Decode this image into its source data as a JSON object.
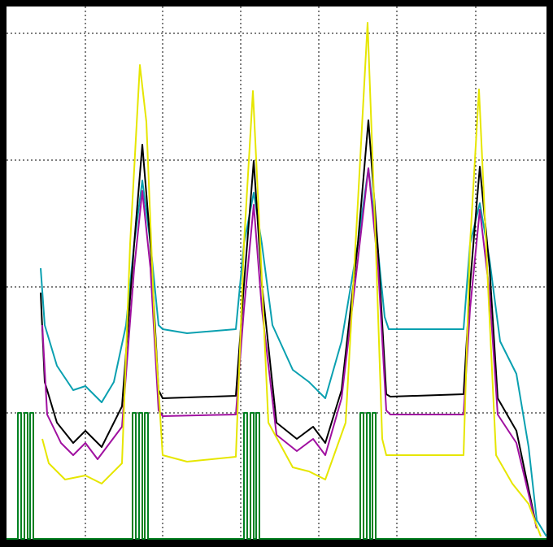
{
  "chart_data": {
    "type": "line",
    "grid": true,
    "xlim": [
      0,
      664
    ],
    "ylim": [
      0,
      655
    ],
    "xticks": [
      97,
      192,
      288,
      384,
      480,
      577
    ],
    "yticks": [
      155,
      310,
      466,
      622
    ],
    "series": [
      {
        "color": "#0aa0b0",
        "x": [
          42,
          47,
          62,
          82,
          97,
          117,
          132,
          147,
          157,
          167,
          177,
          187,
          192,
          222,
          282,
          292,
          304,
          314,
          327,
          352,
          372,
          392,
          412,
          432,
          445,
          455,
          465,
          470,
          522,
          562,
          570,
          582,
          594,
          607,
          627,
          642,
          652,
          664
        ],
        "values": [
          333,
          263,
          213,
          183,
          188,
          168,
          193,
          263,
          363,
          441,
          363,
          263,
          258,
          253,
          258,
          363,
          426,
          363,
          263,
          208,
          193,
          173,
          243,
          363,
          456,
          373,
          273,
          258,
          258,
          258,
          363,
          413,
          343,
          243,
          203,
          113,
          23,
          3
        ]
      },
      {
        "color": "#000000",
        "x": [
          42,
          47,
          62,
          82,
          97,
          117,
          142,
          157,
          167,
          177,
          187,
          192,
          282,
          292,
          304,
          314,
          332,
          357,
          377,
          392,
          412,
          432,
          445,
          457,
          467,
          472,
          562,
          570,
          582,
          594,
          604,
          627,
          652
        ],
        "values": [
          303,
          193,
          143,
          118,
          133,
          113,
          163,
          363,
          485,
          363,
          183,
          173,
          176,
          313,
          465,
          313,
          143,
          123,
          138,
          118,
          183,
          363,
          515,
          353,
          178,
          175,
          178,
          313,
          458,
          333,
          173,
          133,
          13
        ]
      },
      {
        "color": "#a010a0",
        "x": [
          44,
          50,
          67,
          82,
          97,
          112,
          142,
          157,
          167,
          177,
          187,
          192,
          282,
          292,
          304,
          314,
          332,
          357,
          377,
          392,
          412,
          432,
          445,
          457,
          467,
          472,
          562,
          570,
          582,
          594,
          604,
          627,
          652
        ],
        "values": [
          263,
          153,
          118,
          103,
          118,
          98,
          138,
          333,
          428,
          333,
          158,
          151,
          153,
          283,
          411,
          283,
          128,
          108,
          123,
          103,
          173,
          343,
          456,
          333,
          158,
          153,
          153,
          283,
          405,
          303,
          153,
          118,
          13
        ]
      },
      {
        "color": "#e6e600",
        "x": [
          44,
          52,
          72,
          97,
          117,
          142,
          152,
          164,
          172,
          182,
          192,
          222,
          282,
          292,
          303,
          312,
          322,
          352,
          372,
          392,
          417,
          432,
          444,
          454,
          462,
          467,
          562,
          570,
          581,
          592,
          602,
          622,
          642,
          657
        ],
        "values": [
          123,
          93,
          73,
          78,
          68,
          93,
          363,
          583,
          513,
          263,
          103,
          95,
          101,
          363,
          551,
          363,
          143,
          88,
          83,
          73,
          143,
          413,
          635,
          363,
          123,
          103,
          103,
          363,
          553,
          313,
          103,
          68,
          43,
          3
        ]
      },
      {
        "color": "#008020",
        "x": [
          0,
          14,
          14,
          18,
          18,
          22,
          22,
          26,
          26,
          29,
          29,
          33,
          33,
          155,
          155,
          159,
          159,
          163,
          163,
          167,
          167,
          170,
          170,
          174,
          174,
          292,
          292,
          296,
          296,
          300,
          300,
          304,
          304,
          307,
          307,
          311,
          311,
          435,
          435,
          439,
          439,
          443,
          443,
          447,
          447,
          450,
          450,
          454,
          454,
          664
        ],
        "values": [
          0,
          0,
          155,
          155,
          0,
          0,
          155,
          155,
          0,
          0,
          155,
          155,
          0,
          0,
          155,
          155,
          0,
          0,
          155,
          155,
          0,
          0,
          155,
          155,
          0,
          0,
          155,
          155,
          0,
          0,
          155,
          155,
          0,
          0,
          155,
          155,
          0,
          0,
          155,
          155,
          0,
          0,
          155,
          155,
          0,
          0,
          155,
          155,
          0,
          0
        ]
      }
    ]
  }
}
